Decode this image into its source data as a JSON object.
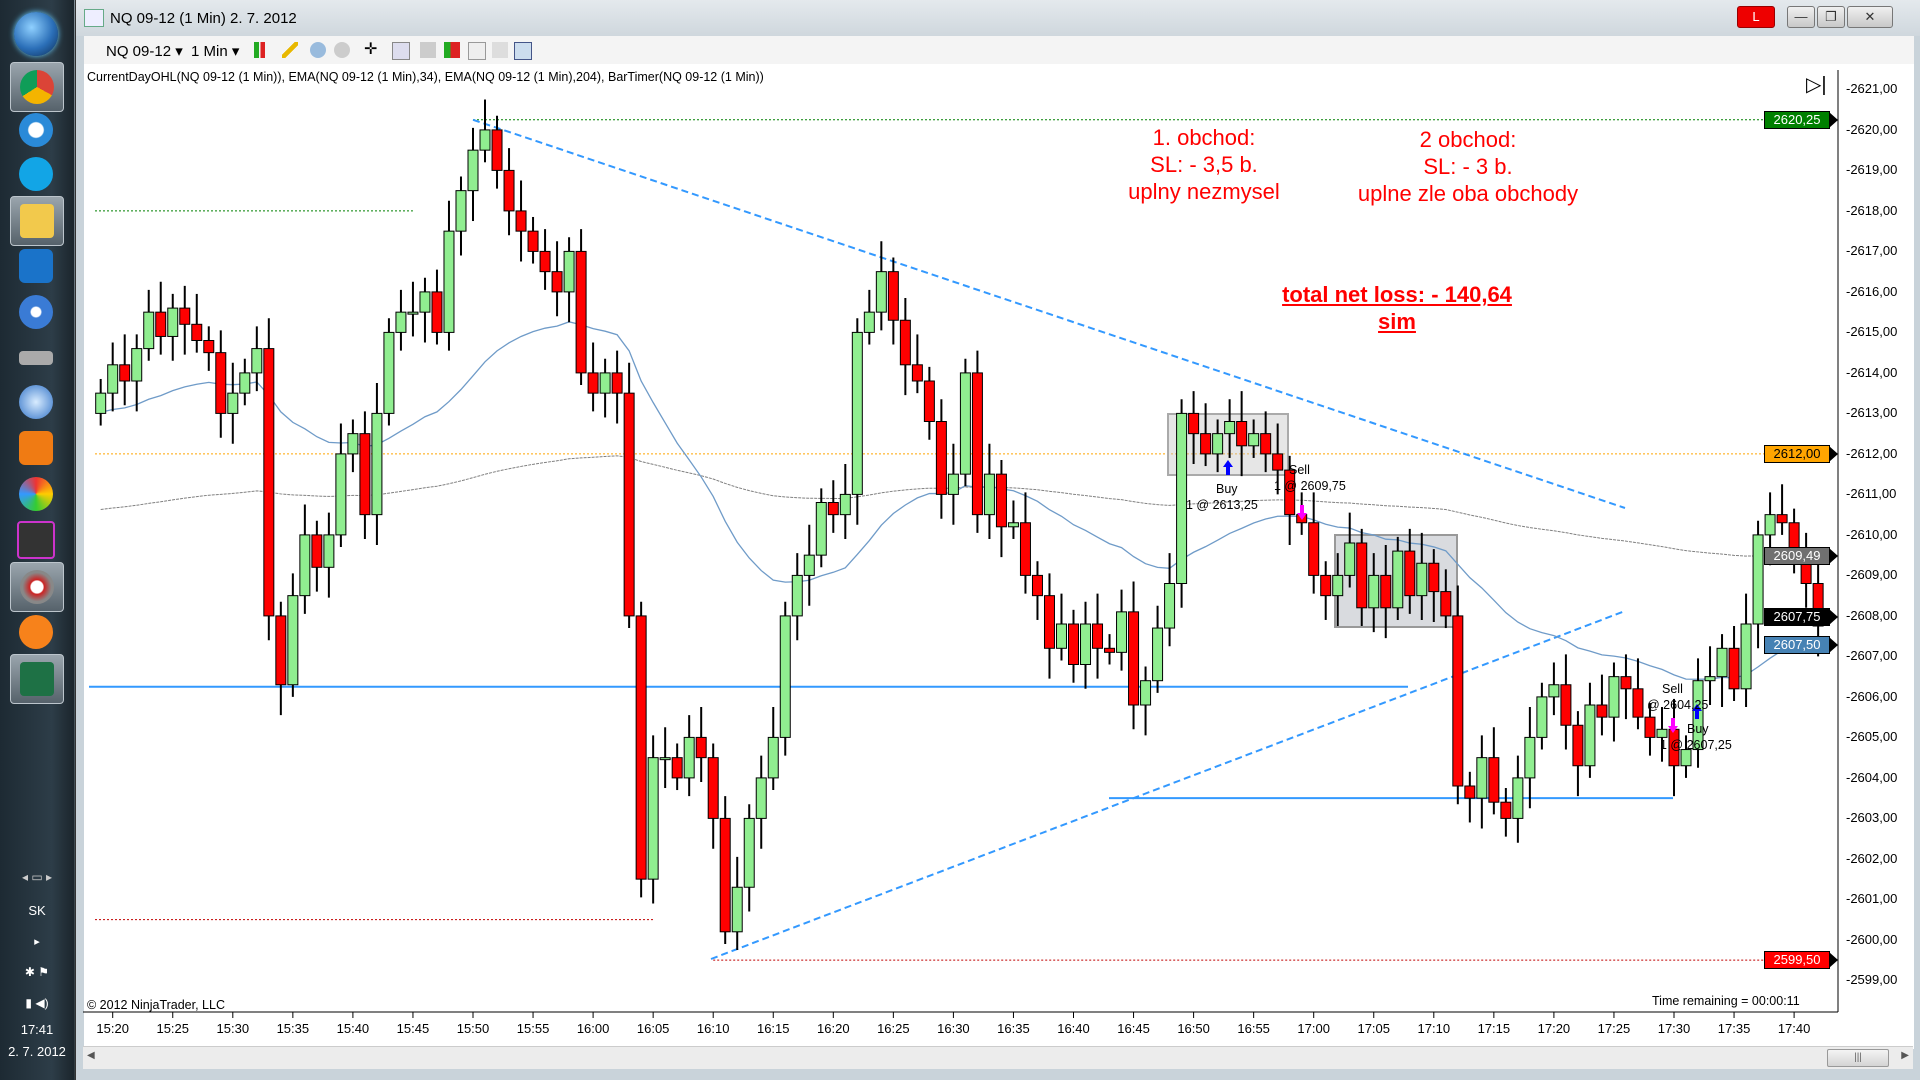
{
  "taskbar": {
    "icons": [
      "windows-start",
      "chrome",
      "internet-explorer",
      "skype",
      "file-explorer",
      "teamviewer",
      "itunes",
      "drive",
      "thunderbird",
      "vlc",
      "ninjatrader-app",
      "media-app",
      "ninjatrader-active",
      "avast",
      "excel"
    ],
    "language": "SK",
    "clock_time": "17:41",
    "clock_date": "2. 7. 2012"
  },
  "window": {
    "title": "NQ 09-12 (1 Min)  2. 7. 2012",
    "live_indicator": "L",
    "minimize": "—",
    "restore": "❐",
    "close": "✕"
  },
  "toolbar": {
    "instrument": "NQ 09-12 ▾",
    "interval": "1 Min ▾",
    "icons": [
      "chart-style",
      "drawing-pencil",
      "zoom-in",
      "zoom-out",
      "crosshair",
      "zoom-box",
      "data-box",
      "bar-properties",
      "indicators",
      "strategies",
      "properties"
    ]
  },
  "chart": {
    "indicator_label": "CurrentDayOHL(NQ 09-12 (1 Min)),  EMA(NQ 09-12 (1 Min),34),  EMA(NQ 09-12 (1 Min),204),  BarTimer(NQ 09-12 (1 Min))",
    "copyright": "© 2012 NinjaTrader, LLC",
    "time_remaining": "Time remaining = 00:00:11",
    "annotations": {
      "trade1": [
        "1. obchod:",
        "SL: - 3,5 b.",
        "uplny nezmysel"
      ],
      "trade2": [
        "2 obchod:",
        "SL: - 3 b.",
        "uplne zle oba obchody"
      ],
      "total": [
        "total net loss: - 140,64",
        "sim"
      ],
      "color": "#ff0000"
    },
    "executions": [
      {
        "side": "Buy",
        "detail": "1 @ 2613,25"
      },
      {
        "side": "Sell",
        "detail": "1 @ 2609,75"
      },
      {
        "side": "Sell",
        "detail": "@ 2604,25"
      },
      {
        "side": "Buy",
        "detail": "1 @ 2607,25"
      }
    ],
    "price_badges": [
      {
        "label": "2620,25",
        "color": "#008000"
      },
      {
        "label": "2612,00",
        "color": "#ffa500",
        "text_color": "#000000"
      },
      {
        "label": "2609,49",
        "color": "#707070"
      },
      {
        "label": "2607,50",
        "color": "#4682b4"
      },
      {
        "label": "2607,75",
        "color": "#000000"
      },
      {
        "label": "2599,50",
        "color": "#ff0000"
      }
    ],
    "colors": {
      "up": "#90ee90",
      "down": "#ff0000",
      "ema34": "#6f9bc8",
      "ema204": "#808080",
      "trendline": "#3399ff",
      "high": "#008000",
      "low": "#c00000",
      "open": "#ffa500"
    }
  },
  "chart_data": {
    "type": "candlestick",
    "y_ticks": [
      "2621,00",
      "2620,00",
      "2619,00",
      "2618,00",
      "2617,00",
      "2616,00",
      "2615,00",
      "2614,00",
      "2613,00",
      "2612,00",
      "2611,00",
      "2610,00",
      "2609,00",
      "2608,00",
      "2607,00",
      "2606,00",
      "2605,00",
      "2604,00",
      "2603,00",
      "2602,00",
      "2601,00",
      "2600,00",
      "2599,00"
    ],
    "x_ticks": [
      "15:20",
      "15:25",
      "15:30",
      "15:35",
      "15:40",
      "15:45",
      "15:50",
      "15:55",
      "16:00",
      "16:05",
      "16:10",
      "16:15",
      "16:20",
      "16:25",
      "16:30",
      "16:35",
      "16:40",
      "16:45",
      "16:50",
      "16:55",
      "17:00",
      "17:05",
      "17:10",
      "17:15",
      "17:20",
      "17:25",
      "17:30",
      "17:35",
      "17:40"
    ],
    "ylim": [
      2598.75,
      2621.4
    ],
    "levels": {
      "current_day_high": 2620.25,
      "prior_high": 2618.0,
      "current_day_open": 2612.0,
      "prior_low": 2600.5,
      "current_day_low": 2599.5,
      "support_1": 2606.25,
      "support_2": 2603.5
    },
    "bars": [
      [
        "15:19",
        2613.5
      ],
      [
        "15:20",
        2614.2
      ],
      [
        "15:21",
        2613.8
      ],
      [
        "15:22",
        2614.6
      ],
      [
        "15:23",
        2615.5
      ],
      [
        "15:24",
        2614.9
      ],
      [
        "15:25",
        2615.6
      ],
      [
        "15:26",
        2615.2
      ],
      [
        "15:27",
        2614.8
      ],
      [
        "15:28",
        2614.5
      ],
      [
        "15:29",
        2613.0
      ],
      [
        "15:30",
        2613.5
      ],
      [
        "15:31",
        2614.0
      ],
      [
        "15:32",
        2614.6
      ],
      [
        "15:33",
        2608.0
      ],
      [
        "15:34",
        2606.3
      ],
      [
        "15:35",
        2608.5
      ],
      [
        "15:36",
        2610.0
      ],
      [
        "15:37",
        2609.2
      ],
      [
        "15:38",
        2610.0
      ],
      [
        "15:39",
        2612.0
      ],
      [
        "15:40",
        2612.5
      ],
      [
        "15:41",
        2610.5
      ],
      [
        "15:42",
        2613.0
      ],
      [
        "15:43",
        2615.0
      ],
      [
        "15:44",
        2615.5
      ],
      [
        "15:45",
        2615.5
      ],
      [
        "15:46",
        2616.0
      ],
      [
        "15:47",
        2615.0
      ],
      [
        "15:48",
        2617.5
      ],
      [
        "15:49",
        2618.5
      ],
      [
        "15:50",
        2619.5
      ],
      [
        "15:51",
        2620.0
      ],
      [
        "15:52",
        2619.0
      ],
      [
        "15:53",
        2618.0
      ],
      [
        "15:54",
        2617.5
      ],
      [
        "15:55",
        2617.0
      ],
      [
        "15:56",
        2616.5
      ],
      [
        "15:57",
        2616.0
      ],
      [
        "15:58",
        2617.0
      ],
      [
        "15:59",
        2614.0
      ],
      [
        "16:00",
        2613.5
      ],
      [
        "16:01",
        2614.0
      ],
      [
        "16:02",
        2613.5
      ],
      [
        "16:03",
        2608.0
      ],
      [
        "16:04",
        2601.5
      ],
      [
        "16:05",
        2604.5
      ],
      [
        "16:06",
        2604.5
      ],
      [
        "16:07",
        2604.0
      ],
      [
        "16:08",
        2605.0
      ],
      [
        "16:09",
        2604.5
      ],
      [
        "16:10",
        2603.0
      ],
      [
        "16:11",
        2600.2
      ],
      [
        "16:12",
        2601.3
      ],
      [
        "16:13",
        2603.0
      ],
      [
        "16:14",
        2604.0
      ],
      [
        "16:15",
        2605.0
      ],
      [
        "16:16",
        2608.0
      ],
      [
        "16:17",
        2609.0
      ],
      [
        "16:18",
        2609.5
      ],
      [
        "16:19",
        2610.8
      ],
      [
        "16:20",
        2610.5
      ],
      [
        "16:21",
        2611.0
      ],
      [
        "16:22",
        2615.0
      ],
      [
        "16:23",
        2615.5
      ],
      [
        "16:24",
        2616.5
      ],
      [
        "16:25",
        2615.3
      ],
      [
        "16:26",
        2614.2
      ],
      [
        "16:27",
        2613.8
      ],
      [
        "16:28",
        2612.8
      ],
      [
        "16:29",
        2611.0
      ],
      [
        "16:30",
        2611.5
      ],
      [
        "16:31",
        2614.0
      ],
      [
        "16:32",
        2610.5
      ],
      [
        "16:33",
        2611.5
      ],
      [
        "16:34",
        2610.2
      ],
      [
        "16:35",
        2610.3
      ],
      [
        "16:36",
        2609.0
      ],
      [
        "16:37",
        2608.5
      ],
      [
        "16:38",
        2607.2
      ],
      [
        "16:39",
        2607.8
      ],
      [
        "16:40",
        2606.8
      ],
      [
        "16:41",
        2607.8
      ],
      [
        "16:42",
        2607.2
      ],
      [
        "16:43",
        2607.1
      ],
      [
        "16:44",
        2608.1
      ],
      [
        "16:45",
        2605.8
      ],
      [
        "16:46",
        2606.4
      ],
      [
        "16:47",
        2607.7
      ],
      [
        "16:48",
        2608.8
      ],
      [
        "16:49",
        2613.0
      ],
      [
        "16:50",
        2612.5
      ],
      [
        "16:51",
        2612.0
      ],
      [
        "16:52",
        2612.5
      ],
      [
        "16:53",
        2612.8
      ],
      [
        "16:54",
        2612.2
      ],
      [
        "16:55",
        2612.5
      ],
      [
        "16:56",
        2612.0
      ],
      [
        "16:57",
        2611.6
      ],
      [
        "16:58",
        2610.5
      ],
      [
        "16:59",
        2610.3
      ],
      [
        "17:00",
        2609.0
      ],
      [
        "17:01",
        2608.5
      ],
      [
        "17:02",
        2609.0
      ],
      [
        "17:03",
        2609.8
      ],
      [
        "17:04",
        2608.2
      ],
      [
        "17:05",
        2609.0
      ],
      [
        "17:06",
        2608.2
      ],
      [
        "17:07",
        2609.6
      ],
      [
        "17:08",
        2608.5
      ],
      [
        "17:09",
        2609.3
      ],
      [
        "17:10",
        2608.6
      ],
      [
        "17:11",
        2608.0
      ],
      [
        "17:12",
        2603.8
      ],
      [
        "17:13",
        2603.5
      ],
      [
        "17:14",
        2604.5
      ],
      [
        "17:15",
        2603.4
      ],
      [
        "17:16",
        2603.0
      ],
      [
        "17:17",
        2604.0
      ],
      [
        "17:18",
        2605.0
      ],
      [
        "17:19",
        2606.0
      ],
      [
        "17:20",
        2606.3
      ],
      [
        "17:21",
        2605.3
      ],
      [
        "17:22",
        2604.3
      ],
      [
        "17:23",
        2605.8
      ],
      [
        "17:24",
        2605.5
      ],
      [
        "17:25",
        2606.5
      ],
      [
        "17:26",
        2606.2
      ],
      [
        "17:27",
        2605.5
      ],
      [
        "17:28",
        2605.0
      ],
      [
        "17:29",
        2605.2
      ],
      [
        "17:30",
        2604.3
      ],
      [
        "17:31",
        2604.7
      ],
      [
        "17:32",
        2606.4
      ],
      [
        "17:33",
        2606.5
      ],
      [
        "17:34",
        2607.2
      ],
      [
        "17:35",
        2606.2
      ],
      [
        "17:36",
        2607.8
      ],
      [
        "17:37",
        2610.0
      ],
      [
        "17:38",
        2610.5
      ],
      [
        "17:39",
        2610.3
      ],
      [
        "17:40",
        2609.5
      ],
      [
        "17:41",
        2608.8
      ],
      [
        "17:42",
        2607.75
      ]
    ]
  }
}
